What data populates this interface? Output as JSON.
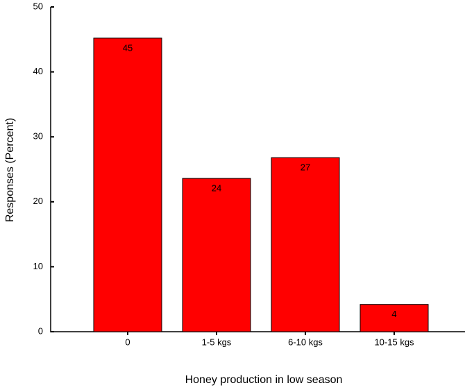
{
  "chart_data": {
    "type": "bar",
    "x_label": "Honey production in low season",
    "y_label": "Responses (Percent)",
    "categories": [
      "0",
      "1-5 kgs",
      "6-10 kgs",
      "10-15 kgs"
    ],
    "values": [
      45.2,
      23.6,
      26.8,
      4.2
    ],
    "value_labels": [
      "45",
      "24",
      "27",
      "4"
    ],
    "color": "#ff0000",
    "ylim": [
      0,
      50
    ],
    "yticks": [
      0,
      10,
      20,
      30,
      40,
      50
    ],
    "grid": false
  }
}
